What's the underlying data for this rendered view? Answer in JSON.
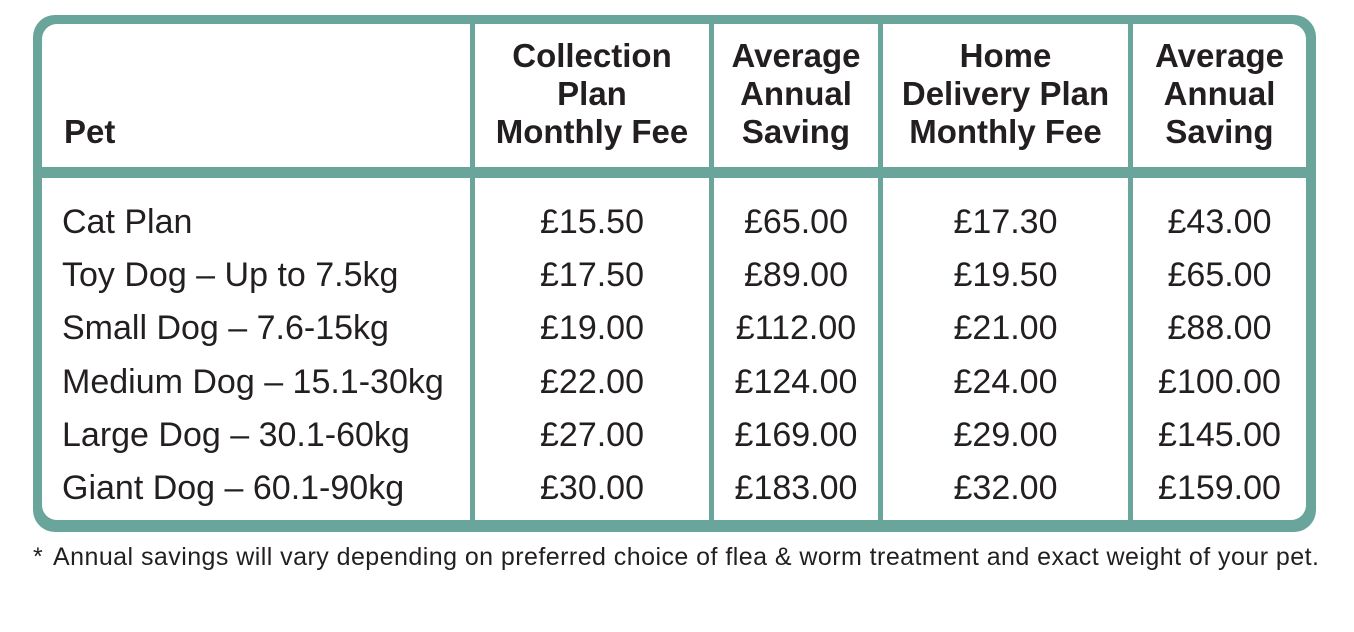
{
  "table": {
    "headers": {
      "pet": [
        "Pet"
      ],
      "collection_fee": [
        "Collection",
        "Plan",
        "Monthly Fee"
      ],
      "collection_saving": [
        "Average",
        "Annual",
        "Saving"
      ],
      "delivery_fee": [
        "Home",
        "Delivery Plan",
        "Monthly Fee"
      ],
      "delivery_saving": [
        "Average",
        "Annual",
        "Saving"
      ]
    },
    "rows": [
      {
        "pet": "Cat Plan",
        "collection_fee": "£15.50",
        "collection_saving": "£65.00",
        "delivery_fee": "£17.30",
        "delivery_saving": "£43.00"
      },
      {
        "pet": "Toy Dog – Up to 7.5kg",
        "collection_fee": "£17.50",
        "collection_saving": "£89.00",
        "delivery_fee": "£19.50",
        "delivery_saving": "£65.00"
      },
      {
        "pet": "Small Dog – 7.6-15kg",
        "collection_fee": "£19.00",
        "collection_saving": "£112.00",
        "delivery_fee": "£21.00",
        "delivery_saving": "£88.00"
      },
      {
        "pet": "Medium Dog – 15.1-30kg",
        "collection_fee": "£22.00",
        "collection_saving": "£124.00",
        "delivery_fee": "£24.00",
        "delivery_saving": "£100.00"
      },
      {
        "pet": "Large Dog – 30.1-60kg",
        "collection_fee": "£27.00",
        "collection_saving": "£169.00",
        "delivery_fee": "£29.00",
        "delivery_saving": "£145.00"
      },
      {
        "pet": "Giant Dog – 60.1-90kg",
        "collection_fee": "£30.00",
        "collection_saving": "£183.00",
        "delivery_fee": "£32.00",
        "delivery_saving": "£159.00"
      }
    ]
  },
  "footnote": {
    "marker": "*",
    "text": "Annual savings will vary depending on preferred choice of flea & worm treatment and exact weight of your pet."
  },
  "colors": {
    "border": "#6aa59c",
    "text": "#231f20",
    "cell_background": "#ffffff"
  }
}
